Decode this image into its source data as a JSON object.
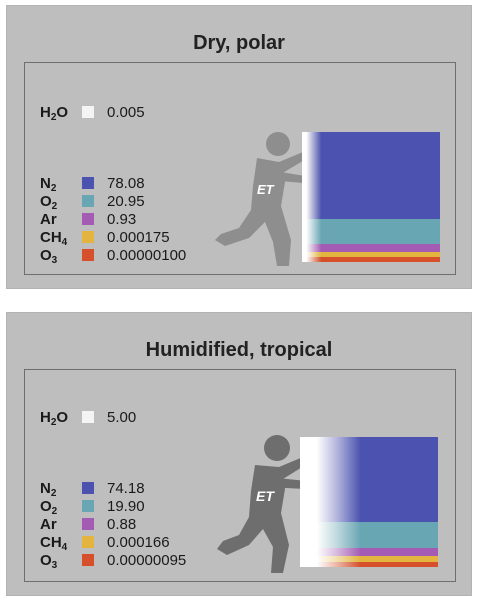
{
  "panels": [
    {
      "title": "Dry, polar",
      "water": {
        "formula": "H",
        "sub": "2",
        "suffix": "O",
        "color": "#f4f4f4",
        "value": "0.005"
      },
      "gases": [
        {
          "formula": "N",
          "sub": "2",
          "suffix": "",
          "color": "#4b52b0",
          "value": "78.08"
        },
        {
          "formula": "O",
          "sub": "2",
          "suffix": "",
          "color": "#69a6b4",
          "value": "20.95"
        },
        {
          "formula": "Ar",
          "sub": "",
          "suffix": "",
          "color": "#a35bb4",
          "value": "0.93"
        },
        {
          "formula": "CH",
          "sub": "4",
          "suffix": "",
          "color": "#e3b53e",
          "value": "0.000175"
        },
        {
          "formula": "O",
          "sub": "3",
          "suffix": "",
          "color": "#d5502b",
          "value": "0.00000100"
        }
      ],
      "figure_label": "ET"
    },
    {
      "title": "Humidified, tropical",
      "water": {
        "formula": "H",
        "sub": "2",
        "suffix": "O",
        "color": "#f4f4f4",
        "value": "5.00"
      },
      "gases": [
        {
          "formula": "N",
          "sub": "2",
          "suffix": "",
          "color": "#4b52b0",
          "value": "74.18"
        },
        {
          "formula": "O",
          "sub": "2",
          "suffix": "",
          "color": "#69a6b4",
          "value": "19.90"
        },
        {
          "formula": "Ar",
          "sub": "",
          "suffix": "",
          "color": "#a35bb4",
          "value": "0.88"
        },
        {
          "formula": "CH",
          "sub": "4",
          "suffix": "",
          "color": "#e3b53e",
          "value": "0.000166"
        },
        {
          "formula": "O",
          "sub": "3",
          "suffix": "",
          "color": "#d5502b",
          "value": "0.00000095"
        }
      ],
      "figure_label": "ET"
    }
  ]
}
